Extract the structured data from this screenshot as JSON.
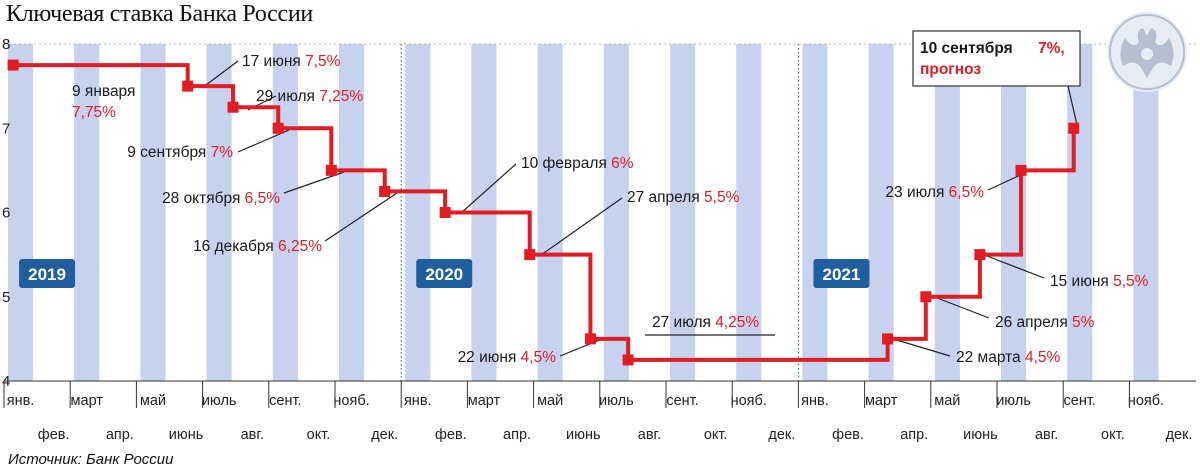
{
  "title": "Ключевая ставка Банка России",
  "source": "Источник: Банк России",
  "colors": {
    "band": "#c7d2ee",
    "line": "#e31b23",
    "badge": "#1f5fa0",
    "leader": "#222222",
    "emblem": "#b6bfd0"
  },
  "emblem_icon": "double-headed-eagle-icon",
  "chart_data": {
    "type": "line",
    "step": true,
    "title": "Ключевая ставка Банка России",
    "xlabel": "",
    "ylabel": "",
    "ylim": [
      4,
      8
    ],
    "yticks": [
      4,
      5,
      6,
      7,
      8
    ],
    "grid": "alternating-month-bands",
    "months": [
      "янв.",
      "фев.",
      "март",
      "апр.",
      "май",
      "июнь",
      "июль",
      "авг.",
      "сент.",
      "окт.",
      "нояб.",
      "дек.",
      "янв.",
      "фев.",
      "март",
      "апр.",
      "май",
      "июнь",
      "июль",
      "авг.",
      "сент.",
      "окт.",
      "нояб.",
      "дек.",
      "янв.",
      "фев.",
      "март",
      "апр.",
      "май",
      "июнь",
      "июль",
      "авг.",
      "сент.",
      "окт.",
      "нояб.",
      "дек."
    ],
    "years": [
      "2019",
      "2020",
      "2021"
    ],
    "series": [
      {
        "points": [
          {
            "date": "2019-01-09",
            "value": 7.75,
            "label_date": "9 января",
            "label_value": "7,75%"
          },
          {
            "date": "2019-06-17",
            "value": 7.5,
            "label_date": "17 июня",
            "label_value": "7,5%"
          },
          {
            "date": "2019-07-29",
            "value": 7.25,
            "label_date": "29 июля",
            "label_value": "7,25%"
          },
          {
            "date": "2019-09-09",
            "value": 7.0,
            "label_date": "9 сентября",
            "label_value": "7%"
          },
          {
            "date": "2019-10-28",
            "value": 6.5,
            "label_date": "28 октября",
            "label_value": "6,5%"
          },
          {
            "date": "2019-12-16",
            "value": 6.25,
            "label_date": "16 декабря",
            "label_value": "6,25%"
          },
          {
            "date": "2020-02-10",
            "value": 6.0,
            "label_date": "10 февраля",
            "label_value": "6%"
          },
          {
            "date": "2020-04-27",
            "value": 5.5,
            "label_date": "27 апреля",
            "label_value": "5,5%"
          },
          {
            "date": "2020-06-22",
            "value": 4.5,
            "label_date": "22 июня",
            "label_value": "4,5%"
          },
          {
            "date": "2020-07-27",
            "value": 4.25,
            "label_date": "27 июля",
            "label_value": "4,25%"
          },
          {
            "date": "2021-03-22",
            "value": 4.5,
            "label_date": "22 марта",
            "label_value": "4,5%"
          },
          {
            "date": "2021-04-26",
            "value": 5.0,
            "label_date": "26 апреля",
            "label_value": "5%"
          },
          {
            "date": "2021-06-15",
            "value": 5.5,
            "label_date": "15 июня",
            "label_value": "5,5%"
          },
          {
            "date": "2021-07-23",
            "value": 6.5,
            "label_date": "23 июля",
            "label_value": "6,5%"
          },
          {
            "date": "2021-09-10",
            "value": 7.0,
            "label_date": "10 сентября",
            "label_value": "7%,",
            "label_extra": "прогноз"
          }
        ]
      }
    ]
  }
}
